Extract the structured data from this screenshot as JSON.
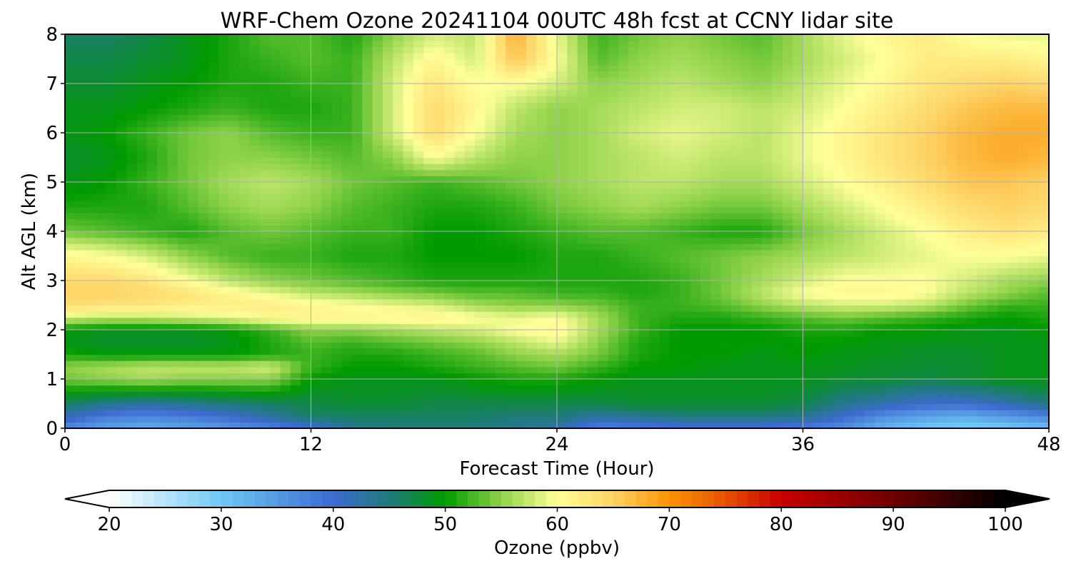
{
  "chart_data": {
    "type": "heatmap",
    "title": "WRF-Chem Ozone  20241104 00UTC 48h fcst at CCNY lidar site",
    "xlabel": "Forecast Time (Hour)",
    "ylabel": "Alt AGL (km)",
    "xlim": [
      0,
      48
    ],
    "ylim": [
      0,
      8
    ],
    "xticks": [
      0,
      12,
      24,
      36,
      48
    ],
    "yticks": [
      0,
      1,
      2,
      3,
      4,
      5,
      6,
      7,
      8
    ],
    "grid": true,
    "x": [
      0,
      2,
      4,
      6,
      8,
      10,
      12,
      14,
      16,
      18,
      20,
      22,
      24,
      26,
      28,
      30,
      32,
      34,
      36,
      38,
      40,
      42,
      44,
      46,
      48
    ],
    "y": [
      0,
      0.25,
      0.5,
      1,
      1.25,
      1.5,
      1.75,
      2,
      2.25,
      2.5,
      2.75,
      3,
      3.5,
      4,
      4.5,
      5,
      5.5,
      6,
      6.5,
      7,
      7.5,
      8
    ],
    "z": [
      [
        36,
        34,
        33,
        34,
        35,
        37,
        40,
        44,
        45,
        45,
        45,
        44,
        43,
        37,
        38,
        39,
        39,
        39,
        38,
        36,
        32,
        30,
        29,
        30,
        31
      ],
      [
        42,
        38,
        37,
        38,
        40,
        43,
        46,
        46,
        46,
        46,
        46,
        45,
        45,
        43,
        44,
        45,
        45,
        45,
        44,
        40,
        36,
        34,
        33,
        35,
        37
      ],
      [
        46,
        44,
        43,
        44,
        45,
        46,
        47,
        48,
        48,
        47,
        47,
        47,
        47,
        47,
        48,
        48,
        48,
        48,
        47,
        44,
        42,
        40,
        40,
        42,
        45
      ],
      [
        54,
        55,
        56,
        55,
        55,
        55,
        50,
        49,
        49,
        49,
        50,
        51,
        51,
        50,
        49,
        49,
        49,
        49,
        49,
        48,
        48,
        47,
        48,
        49,
        49
      ],
      [
        55,
        56,
        57,
        57,
        57,
        58,
        52,
        50,
        50,
        51,
        52,
        53,
        54,
        52,
        50,
        50,
        49,
        49,
        49,
        49,
        48,
        48,
        48,
        49,
        49
      ],
      [
        51,
        50,
        50,
        50,
        50,
        51,
        52,
        51,
        51,
        52,
        53,
        55,
        56,
        54,
        51,
        50,
        50,
        49,
        50,
        49,
        49,
        48,
        48,
        49,
        49
      ],
      [
        49,
        48,
        48,
        48,
        49,
        51,
        53,
        52,
        53,
        54,
        55,
        57,
        59,
        55,
        51,
        50,
        50,
        50,
        50,
        50,
        49,
        49,
        49,
        49,
        49
      ],
      [
        50,
        49,
        49,
        49,
        50,
        52,
        55,
        55,
        56,
        57,
        58,
        60,
        61,
        56,
        52,
        50,
        50,
        50,
        51,
        51,
        50,
        50,
        49,
        49,
        50
      ],
      [
        58,
        57,
        57,
        58,
        59,
        61,
        61,
        61,
        61,
        62,
        60,
        59,
        60,
        56,
        52,
        51,
        51,
        52,
        53,
        54,
        53,
        52,
        51,
        50,
        51
      ],
      [
        64,
        63,
        63,
        62,
        62,
        62,
        61,
        60,
        59,
        58,
        56,
        55,
        55,
        54,
        52,
        52,
        53,
        55,
        57,
        58,
        58,
        57,
        54,
        52,
        52
      ],
      [
        65,
        65,
        64,
        63,
        61,
        59,
        57,
        56,
        55,
        54,
        53,
        53,
        52,
        52,
        51,
        52,
        54,
        57,
        60,
        61,
        61,
        60,
        57,
        55,
        53
      ],
      [
        64,
        64,
        63,
        60,
        57,
        55,
        54,
        53,
        52,
        51,
        51,
        51,
        51,
        51,
        51,
        52,
        54,
        56,
        58,
        60,
        60,
        60,
        58,
        56,
        55
      ],
      [
        61,
        60,
        58,
        55,
        53,
        52,
        52,
        51,
        51,
        50,
        50,
        50,
        51,
        51,
        52,
        53,
        54,
        55,
        56,
        57,
        58,
        59,
        60,
        60,
        59
      ],
      [
        54,
        53,
        52,
        51,
        53,
        54,
        53,
        52,
        52,
        50,
        50,
        51,
        52,
        53,
        53,
        52,
        51,
        51,
        54,
        56,
        58,
        60,
        62,
        63,
        62
      ],
      [
        51,
        51,
        51,
        53,
        55,
        56,
        55,
        53,
        52,
        51,
        51,
        52,
        54,
        55,
        56,
        55,
        54,
        54,
        56,
        58,
        60,
        62,
        64,
        65,
        64
      ],
      [
        49,
        50,
        52,
        54,
        56,
        57,
        56,
        54,
        53,
        52,
        53,
        54,
        55,
        56,
        57,
        57,
        56,
        56,
        58,
        60,
        62,
        64,
        66,
        66,
        65
      ],
      [
        48,
        49,
        51,
        54,
        55,
        55,
        54,
        53,
        55,
        60,
        57,
        55,
        55,
        56,
        57,
        58,
        57,
        57,
        59,
        61,
        63,
        65,
        67,
        68,
        67
      ],
      [
        49,
        50,
        52,
        54,
        55,
        53,
        52,
        52,
        58,
        64,
        60,
        56,
        55,
        56,
        58,
        59,
        58,
        57,
        59,
        61,
        63,
        65,
        67,
        68,
        68
      ],
      [
        49,
        49,
        50,
        51,
        52,
        51,
        51,
        52,
        58,
        64,
        61,
        57,
        55,
        56,
        57,
        58,
        58,
        57,
        58,
        60,
        62,
        64,
        66,
        67,
        67
      ],
      [
        48,
        48,
        49,
        50,
        51,
        51,
        52,
        52,
        58,
        63,
        60,
        60,
        58,
        55,
        56,
        57,
        56,
        55,
        57,
        59,
        61,
        63,
        64,
        65,
        64
      ],
      [
        47,
        47,
        48,
        49,
        51,
        52,
        53,
        52,
        57,
        61,
        58,
        66,
        60,
        53,
        55,
        56,
        55,
        54,
        56,
        58,
        60,
        62,
        62,
        62,
        61
      ],
      [
        46,
        46,
        47,
        49,
        51,
        53,
        53,
        51,
        55,
        58,
        57,
        68,
        59,
        52,
        54,
        55,
        54,
        53,
        56,
        59,
        61,
        62,
        60,
        59,
        59
      ]
    ],
    "colorbar": {
      "label": "Ozone  (ppbv)",
      "min": 20,
      "max": 100,
      "ticks": [
        20,
        30,
        40,
        50,
        60,
        70,
        80,
        90,
        100
      ],
      "extend": "both",
      "stops": [
        {
          "value": 20,
          "color": "#ffffff"
        },
        {
          "value": 30,
          "color": "#6ec8f6"
        },
        {
          "value": 40,
          "color": "#3d6ad0"
        },
        {
          "value": 45,
          "color": "#1f7a7c"
        },
        {
          "value": 50,
          "color": "#009a00"
        },
        {
          "value": 55,
          "color": "#8fd24a"
        },
        {
          "value": 60,
          "color": "#ffff99"
        },
        {
          "value": 65,
          "color": "#fdd265"
        },
        {
          "value": 70,
          "color": "#fb9305"
        },
        {
          "value": 75,
          "color": "#e65200"
        },
        {
          "value": 80,
          "color": "#c80000"
        },
        {
          "value": 90,
          "color": "#6e0000"
        },
        {
          "value": 100,
          "color": "#000000"
        }
      ]
    }
  }
}
